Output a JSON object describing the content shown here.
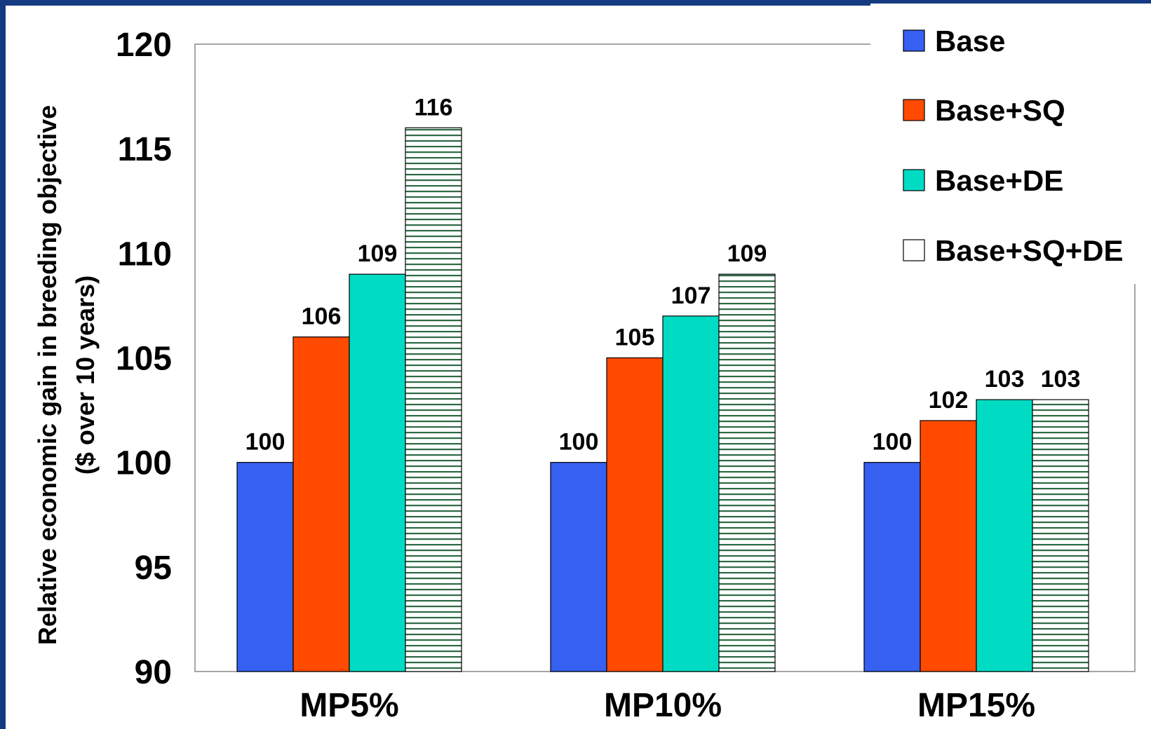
{
  "chart_data": {
    "type": "bar",
    "title": "",
    "ylabel_lines": [
      "Relative economic gain in breeding objective",
      "($ over 10 years)"
    ],
    "xlabel": "",
    "categories": [
      "MP5%",
      "MP10%",
      "MP15%"
    ],
    "ylim": [
      90,
      120
    ],
    "yticks": [
      "90",
      "95",
      "100",
      "105",
      "110",
      "115",
      "120"
    ],
    "grid": false,
    "legend_position": "top-right",
    "series": [
      {
        "name": "Base",
        "values": [
          100,
          100,
          100
        ],
        "labels": [
          "100",
          "100",
          "100"
        ],
        "color": "#3560f0",
        "pattern": "solid"
      },
      {
        "name": "Base+SQ",
        "values": [
          106,
          105,
          102
        ],
        "labels": [
          "106",
          "105",
          "102"
        ],
        "color": "#ff4a00",
        "pattern": "solid"
      },
      {
        "name": "Base+DE",
        "values": [
          109,
          107,
          103
        ],
        "labels": [
          "109",
          "107",
          "103"
        ],
        "color": "#00dcc4",
        "pattern": "solid"
      },
      {
        "name": "Base+SQ+DE",
        "values": [
          116,
          109,
          103
        ],
        "labels": [
          "116",
          "109",
          "103"
        ],
        "color": "#ffffff",
        "pattern": "horizontal-lines",
        "pattern_color": "#2e6a45"
      }
    ]
  },
  "colors": {
    "frame": "#143a82",
    "chart_background": "#ffffff",
    "axis": "#888888"
  }
}
